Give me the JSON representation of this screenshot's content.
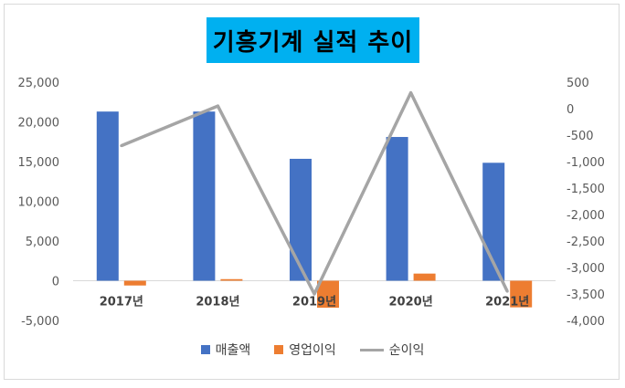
{
  "chart_data": {
    "type": "bar",
    "title": "기흥기계 실적 추이",
    "categories": [
      "2017년",
      "2018년",
      "2019년",
      "2020년",
      "2021년"
    ],
    "series": [
      {
        "name": "매출액",
        "type": "bar",
        "axis": "left",
        "color": "#4472c4",
        "values": [
          21300,
          21300,
          15350,
          18100,
          14850
        ]
      },
      {
        "name": "영업이익",
        "type": "bar",
        "axis": "left",
        "color": "#ed7d31",
        "values": [
          -600,
          200,
          -3400,
          900,
          -3350
        ]
      },
      {
        "name": "순이익",
        "type": "line",
        "axis": "right",
        "color": "#a5a5a5",
        "values": [
          -700,
          50,
          -3500,
          300,
          -3450
        ]
      }
    ],
    "y_left": {
      "min": -5000,
      "max": 25000,
      "step": 5000,
      "tick_labels": [
        "-5,000",
        "0",
        "5,000",
        "10,000",
        "15,000",
        "20,000",
        "25,000"
      ]
    },
    "y_right": {
      "min": -4000,
      "max": 500,
      "step": 500,
      "tick_labels": [
        "-4,000",
        "-3,500",
        "-3,000",
        "-2,500",
        "-2,000",
        "-1,500",
        "-1,000",
        "-500",
        "0",
        "500"
      ]
    },
    "grid": false,
    "legend_position": "bottom"
  }
}
